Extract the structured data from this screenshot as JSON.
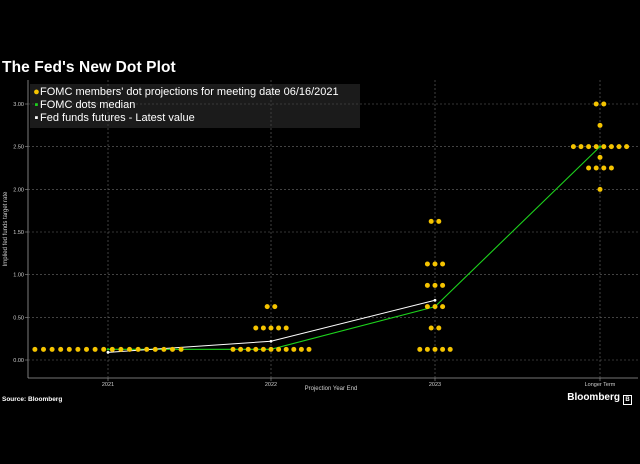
{
  "title": "The Fed's New Dot Plot",
  "source": "Source: Bloomberg",
  "brand": "Bloomberg",
  "chart_data": {
    "type": "scatter",
    "title": "The Fed's New Dot Plot",
    "xlabel": "Projection Year End",
    "ylabel": "Implied fed funds target rate",
    "categories": [
      "2021",
      "2022",
      "2023",
      "Longer Term"
    ],
    "yticks": [
      "0.00",
      "0.50",
      "1.00",
      "1.50",
      "2.00",
      "2.50",
      "3.00"
    ],
    "ylim": [
      -0.05,
      3.25
    ],
    "grid": true,
    "legend_position": "top-left",
    "series": [
      {
        "name": "FOMC members' dot projections for meeting date 06/16/2021",
        "color": "#f5c400",
        "points": [
          {
            "cat": 0,
            "rows": [
              {
                "y": 0.125,
                "count": 18
              }
            ]
          },
          {
            "cat": 1,
            "rows": [
              {
                "y": 0.125,
                "count": 11
              },
              {
                "y": 0.375,
                "count": 5
              },
              {
                "y": 0.625,
                "count": 2
              }
            ]
          },
          {
            "cat": 2,
            "rows": [
              {
                "y": 0.125,
                "count": 5
              },
              {
                "y": 0.375,
                "count": 2
              },
              {
                "y": 0.625,
                "count": 3
              },
              {
                "y": 0.875,
                "count": 3
              },
              {
                "y": 1.125,
                "count": 3
              },
              {
                "y": 1.625,
                "count": 2
              }
            ]
          },
          {
            "cat": 3,
            "rows": [
              {
                "y": 2.0,
                "count": 1
              },
              {
                "y": 2.25,
                "count": 4
              },
              {
                "y": 2.375,
                "count": 1
              },
              {
                "y": 2.5,
                "count": 8
              },
              {
                "y": 2.75,
                "count": 1
              },
              {
                "y": 3.0,
                "count": 2
              }
            ]
          }
        ]
      },
      {
        "name": "FOMC dots median",
        "color": "#1dd31d",
        "values": [
          0.125,
          0.125,
          0.625,
          2.5
        ]
      },
      {
        "name": "Fed funds futures - Latest value",
        "color": "#ffffff",
        "values": [
          0.09,
          0.22,
          0.7
        ]
      }
    ]
  }
}
